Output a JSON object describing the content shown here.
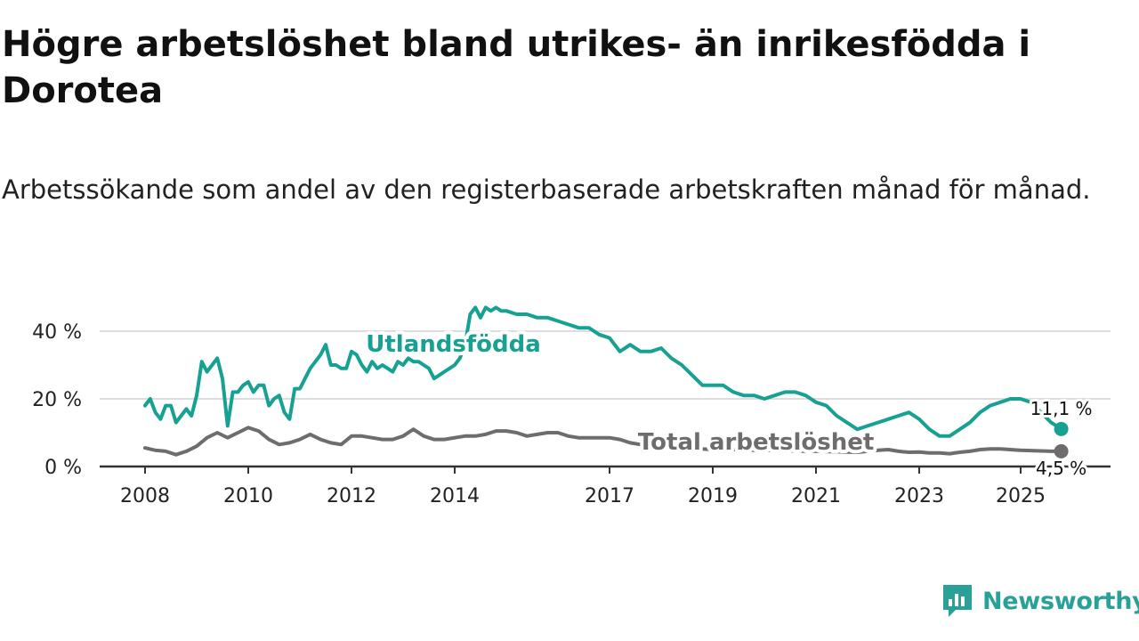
{
  "header": {
    "title": "Högre arbetslöshet bland utrikes- än inrikesfödda i Dorotea",
    "subtitle": "Arbetssökande som andel av den registerbaserade arbetskraften månad för månad."
  },
  "brand": {
    "name": "Newsworthy"
  },
  "colors": {
    "foreign": "#17a192",
    "total": "#6f6c6d",
    "grid": "#dddddd",
    "axis": "#333333",
    "text": "#222222",
    "brand": "#2aa198"
  },
  "chart_data": {
    "type": "line",
    "title": "Högre arbetslöshet bland utrikes- än inrikesfödda i Dorotea",
    "subtitle": "Arbetssökande som andel av den registerbaserade arbetskraften månad för månad.",
    "xlabel": "",
    "ylabel": "",
    "xlim": [
      2008.0,
      2025.9
    ],
    "ylim": [
      0,
      50
    ],
    "y_ticks": [
      0,
      20,
      40
    ],
    "y_tick_labels": [
      "0 %",
      "20 %",
      "40 %"
    ],
    "x_ticks": [
      2008,
      2010,
      2012,
      2014,
      2017,
      2019,
      2021,
      2023,
      2025
    ],
    "x_tick_labels": [
      "2008",
      "2010",
      "2012",
      "2014",
      "2017",
      "2019",
      "2021",
      "2023",
      "2025"
    ],
    "grid": true,
    "legend": "inline labels",
    "series": [
      {
        "name": "Utlandsfödda",
        "label": "Utlandsfödda",
        "end_label": "11,1 %",
        "x": [
          2008.0,
          2008.1,
          2008.2,
          2008.3,
          2008.4,
          2008.5,
          2008.6,
          2008.7,
          2008.8,
          2008.9,
          2009.0,
          2009.1,
          2009.2,
          2009.3,
          2009.4,
          2009.5,
          2009.6,
          2009.7,
          2009.8,
          2009.9,
          2010.0,
          2010.1,
          2010.2,
          2010.3,
          2010.4,
          2010.5,
          2010.6,
          2010.7,
          2010.8,
          2010.9,
          2011.0,
          2011.1,
          2011.2,
          2011.3,
          2011.4,
          2011.5,
          2011.6,
          2011.7,
          2011.8,
          2011.9,
          2012.0,
          2012.1,
          2012.2,
          2012.3,
          2012.4,
          2012.5,
          2012.6,
          2012.7,
          2012.8,
          2012.9,
          2013.0,
          2013.1,
          2013.2,
          2013.3,
          2013.4,
          2013.5,
          2013.6,
          2013.7,
          2013.8,
          2013.9,
          2014.0,
          2014.1,
          2014.2,
          2014.3,
          2014.4,
          2014.5,
          2014.6,
          2014.7,
          2014.8,
          2014.9,
          2015.0,
          2015.2,
          2015.4,
          2015.6,
          2015.8,
          2016.0,
          2016.2,
          2016.4,
          2016.6,
          2016.8,
          2017.0,
          2017.2,
          2017.4,
          2017.6,
          2017.8,
          2018.0,
          2018.2,
          2018.4,
          2018.6,
          2018.8,
          2019.0,
          2019.2,
          2019.4,
          2019.6,
          2019.8,
          2020.0,
          2020.2,
          2020.4,
          2020.6,
          2020.8,
          2021.0,
          2021.2,
          2021.4,
          2021.6,
          2021.8,
          2022.0,
          2022.2,
          2022.4,
          2022.6,
          2022.8,
          2023.0,
          2023.2,
          2023.4,
          2023.6,
          2023.8,
          2024.0,
          2024.2,
          2024.4,
          2024.6,
          2024.8,
          2025.0,
          2025.2,
          2025.4,
          2025.6,
          2025.8
        ],
        "values": [
          18,
          20,
          16,
          14,
          18,
          18,
          13,
          15,
          17,
          15,
          21,
          31,
          28,
          30,
          32,
          26,
          12,
          22,
          22,
          24,
          25,
          22,
          24,
          24,
          18,
          20,
          21,
          16,
          14,
          23,
          23,
          26,
          29,
          31,
          33,
          36,
          30,
          30,
          29,
          29,
          34,
          33,
          30,
          28,
          31,
          29,
          30,
          29,
          28,
          31,
          30,
          32,
          31,
          31,
          30,
          29,
          26,
          27,
          28,
          29,
          30,
          32,
          36,
          45,
          47,
          44,
          47,
          46,
          47,
          46,
          46,
          45,
          45,
          44,
          44,
          43,
          42,
          41,
          41,
          39,
          38,
          34,
          36,
          34,
          34,
          35,
          32,
          30,
          27,
          24,
          24,
          24,
          22,
          21,
          21,
          20,
          21,
          22,
          22,
          21,
          19,
          18,
          15,
          13,
          11,
          12,
          13,
          14,
          15,
          16,
          14,
          11,
          9,
          9,
          11,
          13,
          16,
          18,
          19,
          20,
          20,
          19,
          16,
          13,
          11.1
        ]
      },
      {
        "name": "Total arbetslöshet",
        "label": "Total arbetslöshet",
        "end_label": "4,5 %",
        "x": [
          2008.0,
          2008.2,
          2008.4,
          2008.6,
          2008.8,
          2009.0,
          2009.2,
          2009.4,
          2009.6,
          2009.8,
          2010.0,
          2010.2,
          2010.4,
          2010.6,
          2010.8,
          2011.0,
          2011.2,
          2011.4,
          2011.6,
          2011.8,
          2012.0,
          2012.2,
          2012.4,
          2012.6,
          2012.8,
          2013.0,
          2013.2,
          2013.4,
          2013.6,
          2013.8,
          2014.0,
          2014.2,
          2014.4,
          2014.6,
          2014.8,
          2015.0,
          2015.2,
          2015.4,
          2015.6,
          2015.8,
          2016.0,
          2016.2,
          2016.4,
          2016.6,
          2016.8,
          2017.0,
          2017.2,
          2017.4,
          2017.6,
          2017.8,
          2018.0,
          2018.2,
          2018.4,
          2018.6,
          2018.8,
          2019.0,
          2019.2,
          2019.4,
          2019.6,
          2019.8,
          2020.0,
          2020.2,
          2020.4,
          2020.6,
          2020.8,
          2021.0,
          2021.2,
          2021.4,
          2021.6,
          2021.8,
          2022.0,
          2022.2,
          2022.4,
          2022.6,
          2022.8,
          2023.0,
          2023.2,
          2023.4,
          2023.6,
          2023.8,
          2024.0,
          2024.2,
          2024.4,
          2024.6,
          2024.8,
          2025.0,
          2025.2,
          2025.4,
          2025.6,
          2025.8
        ],
        "values": [
          5.5,
          4.8,
          4.5,
          3.5,
          4.5,
          6,
          8.5,
          10,
          8.5,
          10,
          11.5,
          10.5,
          8,
          6.5,
          7,
          8,
          9.5,
          8,
          7,
          6.5,
          9,
          9,
          8.5,
          8,
          8,
          9,
          11,
          9,
          8,
          8,
          8.5,
          9,
          9,
          9.5,
          10.5,
          10.5,
          10,
          9,
          9.5,
          10,
          10,
          9,
          8.5,
          8.5,
          8.5,
          8.5,
          8,
          7,
          6.5,
          6.5,
          6,
          5.8,
          5.5,
          5.5,
          5.2,
          5,
          5,
          5,
          5,
          4.8,
          4.8,
          4.8,
          4.7,
          4.6,
          4.5,
          4.5,
          4.4,
          4.4,
          4.3,
          4.2,
          4.5,
          4.8,
          5,
          4.5,
          4.2,
          4.3,
          4,
          4,
          3.8,
          4.2,
          4.5,
          5,
          5.2,
          5.2,
          5,
          4.8,
          4.7,
          4.6,
          4.5,
          4.5
        ]
      }
    ]
  }
}
